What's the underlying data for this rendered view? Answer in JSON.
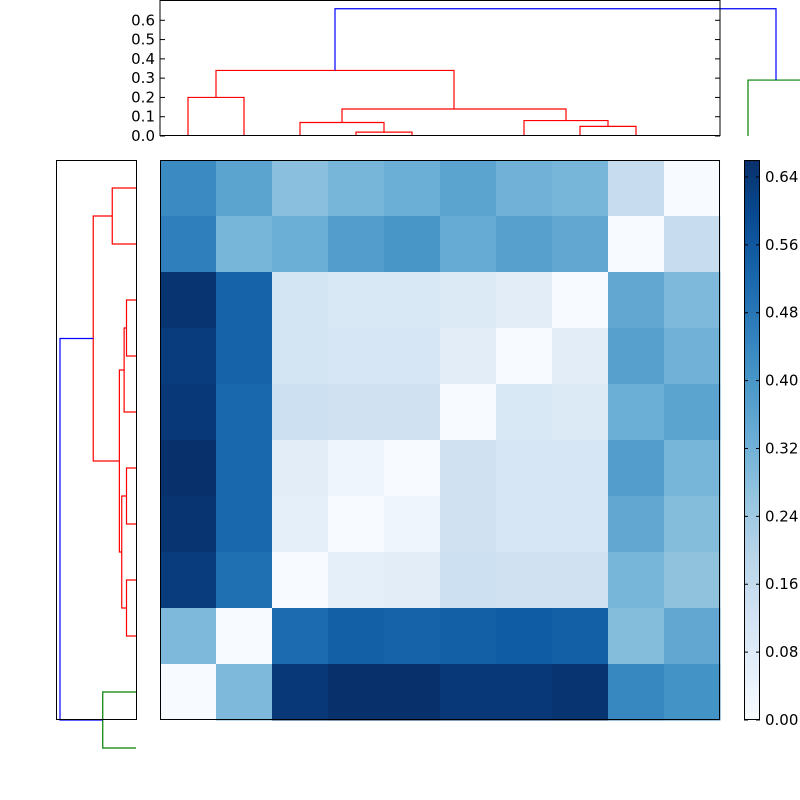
{
  "chart_data": [
    {
      "type": "dendrogram",
      "orientation": "top",
      "ylim": [
        0,
        0.7
      ],
      "yticks": [
        "0.0",
        "0.1",
        "0.2",
        "0.3",
        "0.4",
        "0.5",
        "0.6"
      ],
      "link_colors": {
        "red": "#ff0000",
        "green": "#008000",
        "blue": "#0000ff"
      },
      "links": [
        {
          "left": 10,
          "right": 11,
          "height": 0.29,
          "color": "green"
        },
        {
          "left": 3,
          "right": 4,
          "height": 0.02,
          "color": "red"
        },
        {
          "left": 2,
          "right": 3.5,
          "height": 0.07,
          "color": "red"
        },
        {
          "left": 7,
          "right": 8,
          "height": 0.05,
          "color": "red"
        },
        {
          "left": 6,
          "right": 7.5,
          "height": 0.08,
          "color": "red"
        },
        {
          "left": 2.75,
          "right": 6.75,
          "height": 0.14,
          "color": "red"
        },
        {
          "left": 0,
          "right": 1,
          "height": 0.2,
          "color": "red"
        },
        {
          "left": 4.75,
          "right": 0.5,
          "height": 0.34,
          "color": "red"
        },
        {
          "left": 10.5,
          "right": 2.625,
          "height": 0.66,
          "color": "blue"
        }
      ]
    },
    {
      "type": "dendrogram",
      "orientation": "left",
      "link_colors": {
        "red": "#ff0000",
        "green": "#008000",
        "blue": "#0000ff"
      },
      "links": [
        {
          "a": 0,
          "b": 1,
          "height": 0.05,
          "color": "red"
        },
        {
          "a": 5,
          "b": 6,
          "height": 0.02,
          "color": "red"
        },
        {
          "a": 2,
          "b": 3,
          "height": 0.02,
          "color": "red"
        },
        {
          "a": 2.5,
          "b": 4,
          "height": 0.025,
          "color": "red"
        },
        {
          "a": 7,
          "b": 8,
          "height": 0.02,
          "color": "red"
        },
        {
          "a": 5.5,
          "b": 7.5,
          "height": 0.03,
          "color": "red"
        },
        {
          "a": 3.25,
          "b": 6.5,
          "height": 0.035,
          "color": "red"
        },
        {
          "a": 0.5,
          "b": 4.875,
          "height": 0.09,
          "color": "red"
        },
        {
          "a": 9,
          "b": 10,
          "height": 0.07,
          "color": "green"
        },
        {
          "a": 2.6875,
          "b": 9.5,
          "height": 0.16,
          "color": "blue"
        }
      ]
    },
    {
      "type": "heatmap",
      "colormap": "Blues",
      "vmin": 0.0,
      "vmax": 0.66,
      "colorbar_ticks": [
        "0.00",
        "0.08",
        "0.16",
        "0.24",
        "0.32",
        "0.40",
        "0.48",
        "0.56",
        "0.64"
      ],
      "rows": 10,
      "cols": 10,
      "values": [
        [
          0.43,
          0.36,
          0.28,
          0.31,
          0.33,
          0.36,
          0.32,
          0.31,
          0.16,
          0.0
        ],
        [
          0.46,
          0.31,
          0.33,
          0.38,
          0.4,
          0.34,
          0.37,
          0.35,
          0.0,
          0.16
        ],
        [
          0.65,
          0.53,
          0.12,
          0.1,
          0.1,
          0.09,
          0.07,
          0.0,
          0.35,
          0.3
        ],
        [
          0.63,
          0.53,
          0.12,
          0.11,
          0.11,
          0.07,
          0.0,
          0.07,
          0.37,
          0.32
        ],
        [
          0.64,
          0.52,
          0.14,
          0.13,
          0.13,
          0.0,
          0.1,
          0.09,
          0.33,
          0.36
        ],
        [
          0.66,
          0.52,
          0.07,
          0.03,
          0.0,
          0.13,
          0.11,
          0.11,
          0.38,
          0.31
        ],
        [
          0.65,
          0.52,
          0.06,
          0.0,
          0.03,
          0.13,
          0.11,
          0.11,
          0.35,
          0.29
        ],
        [
          0.63,
          0.5,
          0.0,
          0.06,
          0.07,
          0.14,
          0.13,
          0.13,
          0.31,
          0.27
        ],
        [
          0.3,
          0.0,
          0.51,
          0.54,
          0.53,
          0.54,
          0.55,
          0.54,
          0.29,
          0.35
        ],
        [
          0.0,
          0.3,
          0.64,
          0.66,
          0.66,
          0.64,
          0.64,
          0.65,
          0.44,
          0.41
        ]
      ]
    }
  ]
}
